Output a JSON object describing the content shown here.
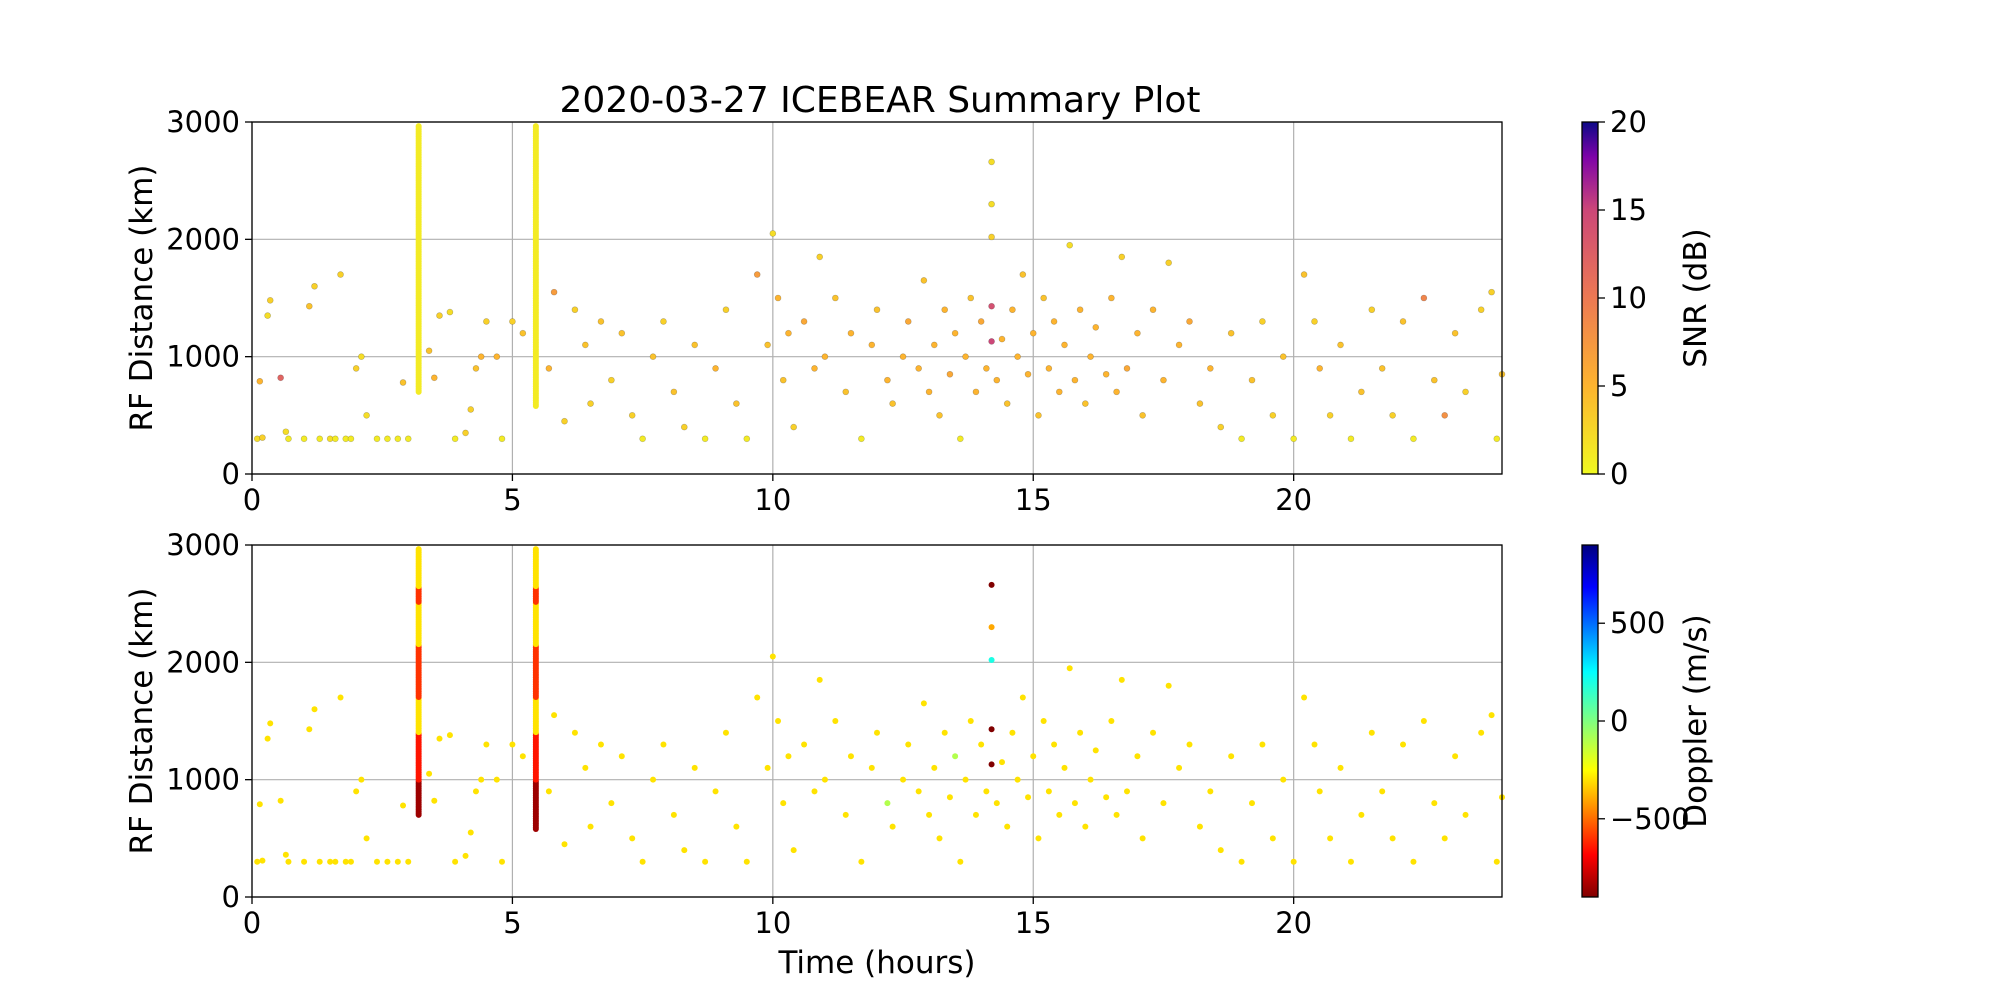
{
  "chart_data": {
    "title": "2020-03-27 ICEBEAR Summary Plot",
    "panels": [
      {
        "type": "scatter",
        "color_by": "snr",
        "ylabel": "RF Distance (km)",
        "xlabel": "",
        "xlim": [
          0,
          24
        ],
        "ylim": [
          0,
          3000
        ],
        "xticks": [
          "0",
          "5",
          "10",
          "15",
          "20"
        ],
        "yticks": [
          "0",
          "1000",
          "2000",
          "3000"
        ],
        "grid": true,
        "colorbar": {
          "label": "SNR (dB)",
          "ticks": [
            "0",
            "5",
            "10",
            "15",
            "20"
          ],
          "range": [
            0,
            20
          ],
          "colormap": "plasma_r"
        }
      },
      {
        "type": "scatter",
        "color_by": "doppler",
        "ylabel": "RF Distance (km)",
        "xlabel": "Time (hours)",
        "xlim": [
          0,
          24
        ],
        "ylim": [
          0,
          3000
        ],
        "xticks": [
          "0",
          "5",
          "10",
          "15",
          "20"
        ],
        "yticks": [
          "0",
          "1000",
          "2000",
          "3000"
        ],
        "grid": true,
        "colorbar": {
          "label": "Doppler (m/s)",
          "ticks": [
            "−500",
            "0",
            "500"
          ],
          "tick_values": [
            -500,
            0,
            500
          ],
          "range": [
            -900,
            900
          ],
          "colormap": "jet_r"
        }
      }
    ],
    "vertical_streaks": [
      {
        "time_h": 3.2,
        "range_km": [
          700,
          2970
        ],
        "snr_db": 1,
        "doppler_mps": -300
      },
      {
        "time_h": 5.45,
        "range_km": [
          580,
          2970
        ],
        "snr_db": 1,
        "doppler_mps": -300
      }
    ],
    "points": [
      [
        0.1,
        300,
        2,
        -300
      ],
      [
        0.2,
        310,
        3,
        -300
      ],
      [
        0.15,
        790,
        5,
        -300
      ],
      [
        0.35,
        1480,
        3,
        -300
      ],
      [
        0.3,
        1350,
        2,
        -300
      ],
      [
        0.55,
        820,
        12,
        -300
      ],
      [
        0.65,
        360,
        2,
        -300
      ],
      [
        0.7,
        300,
        1,
        -300
      ],
      [
        1.1,
        1430,
        4,
        -300
      ],
      [
        1.2,
        1600,
        3,
        -300
      ],
      [
        1.0,
        300,
        1,
        -300
      ],
      [
        1.3,
        300,
        1,
        -300
      ],
      [
        1.5,
        300,
        2,
        -300
      ],
      [
        1.6,
        300,
        1,
        -300
      ],
      [
        1.7,
        1700,
        3,
        -300
      ],
      [
        1.8,
        300,
        1,
        -300
      ],
      [
        1.9,
        300,
        1,
        -300
      ],
      [
        2.0,
        900,
        3,
        -300
      ],
      [
        2.1,
        1000,
        2,
        -300
      ],
      [
        2.2,
        500,
        2,
        -300
      ],
      [
        2.4,
        300,
        1,
        -300
      ],
      [
        2.6,
        300,
        1,
        -300
      ],
      [
        2.8,
        300,
        1,
        -300
      ],
      [
        2.9,
        780,
        4,
        -300
      ],
      [
        3.0,
        300,
        1,
        -300
      ],
      [
        3.4,
        1050,
        4,
        -300
      ],
      [
        3.6,
        1350,
        3,
        -300
      ],
      [
        3.8,
        1380,
        2,
        -300
      ],
      [
        3.5,
        820,
        5,
        -300
      ],
      [
        3.9,
        300,
        1,
        -300
      ],
      [
        4.1,
        350,
        3,
        -300
      ],
      [
        4.2,
        550,
        3,
        -300
      ],
      [
        4.3,
        900,
        4,
        -300
      ],
      [
        4.4,
        1000,
        5,
        -300
      ],
      [
        4.5,
        1300,
        3,
        -300
      ],
      [
        4.7,
        1000,
        5,
        -300
      ],
      [
        4.8,
        300,
        1,
        -300
      ],
      [
        5.0,
        1300,
        3,
        -300
      ],
      [
        5.2,
        1200,
        4,
        -300
      ],
      [
        5.7,
        900,
        5,
        -300
      ],
      [
        5.8,
        1550,
        7,
        -300
      ],
      [
        6.0,
        450,
        3,
        -300
      ],
      [
        6.2,
        1400,
        3,
        -300
      ],
      [
        6.4,
        1100,
        4,
        -300
      ],
      [
        6.5,
        600,
        3,
        -300
      ],
      [
        6.7,
        1300,
        4,
        -300
      ],
      [
        6.9,
        800,
        3,
        -300
      ],
      [
        7.1,
        1200,
        4,
        -300
      ],
      [
        7.3,
        500,
        3,
        -300
      ],
      [
        7.5,
        300,
        1,
        -300
      ],
      [
        7.7,
        1000,
        4,
        -300
      ],
      [
        7.9,
        1300,
        3,
        -300
      ],
      [
        8.1,
        700,
        4,
        -300
      ],
      [
        8.3,
        400,
        3,
        -300
      ],
      [
        8.5,
        1100,
        4,
        -300
      ],
      [
        8.7,
        300,
        1,
        -300
      ],
      [
        8.9,
        900,
        5,
        -300
      ],
      [
        9.1,
        1400,
        3,
        -300
      ],
      [
        9.3,
        600,
        4,
        -300
      ],
      [
        9.5,
        300,
        1,
        -300
      ],
      [
        9.7,
        1700,
        7,
        -300
      ],
      [
        9.9,
        1100,
        4,
        -300
      ],
      [
        10.0,
        2050,
        2,
        -300
      ],
      [
        10.1,
        1500,
        5,
        -300
      ],
      [
        10.2,
        800,
        4,
        -300
      ],
      [
        10.3,
        1200,
        5,
        -300
      ],
      [
        10.4,
        400,
        3,
        -300
      ],
      [
        10.6,
        1300,
        6,
        -300
      ],
      [
        10.8,
        900,
        5,
        -300
      ],
      [
        10.9,
        1850,
        3,
        -300
      ],
      [
        11.0,
        1000,
        5,
        -300
      ],
      [
        11.2,
        1500,
        4,
        -300
      ],
      [
        11.4,
        700,
        4,
        -300
      ],
      [
        11.5,
        1200,
        5,
        -300
      ],
      [
        11.7,
        300,
        1,
        -300
      ],
      [
        11.9,
        1100,
        5,
        -300
      ],
      [
        12.0,
        1400,
        4,
        -300
      ],
      [
        12.2,
        800,
        5,
        -100
      ],
      [
        12.3,
        600,
        4,
        -300
      ],
      [
        12.5,
        1000,
        5,
        -300
      ],
      [
        12.6,
        1300,
        6,
        -300
      ],
      [
        12.8,
        900,
        5,
        -300
      ],
      [
        12.9,
        1650,
        4,
        -300
      ],
      [
        13.0,
        700,
        5,
        -300
      ],
      [
        13.1,
        1100,
        5,
        -300
      ],
      [
        13.2,
        500,
        4,
        -300
      ],
      [
        13.3,
        1400,
        5,
        -300
      ],
      [
        13.4,
        850,
        6,
        -300
      ],
      [
        13.5,
        1200,
        5,
        -100
      ],
      [
        13.6,
        300,
        1,
        -300
      ],
      [
        13.7,
        1000,
        5,
        -300
      ],
      [
        13.8,
        1500,
        4,
        -300
      ],
      [
        13.9,
        700,
        5,
        -300
      ],
      [
        14.0,
        1300,
        6,
        -300
      ],
      [
        14.1,
        900,
        5,
        -300
      ],
      [
        14.2,
        2660,
        2,
        -900
      ],
      [
        14.2,
        2300,
        2,
        -400
      ],
      [
        14.2,
        2020,
        3,
        200
      ],
      [
        14.2,
        1430,
        14,
        -900
      ],
      [
        14.2,
        1130,
        15,
        -900
      ],
      [
        14.3,
        800,
        5,
        -300
      ],
      [
        14.4,
        1150,
        5,
        -300
      ],
      [
        14.5,
        600,
        4,
        -300
      ],
      [
        14.6,
        1400,
        5,
        -300
      ],
      [
        14.7,
        1000,
        5,
        -300
      ],
      [
        14.8,
        1700,
        4,
        -300
      ],
      [
        14.9,
        850,
        5,
        -300
      ],
      [
        15.0,
        1200,
        5,
        -300
      ],
      [
        15.1,
        500,
        4,
        -300
      ],
      [
        15.2,
        1500,
        4,
        -300
      ],
      [
        15.3,
        900,
        5,
        -300
      ],
      [
        15.4,
        1300,
        5,
        -300
      ],
      [
        15.5,
        700,
        5,
        -300
      ],
      [
        15.6,
        1100,
        5,
        -300
      ],
      [
        15.7,
        1950,
        2,
        -300
      ],
      [
        15.8,
        800,
        5,
        -300
      ],
      [
        15.9,
        1400,
        5,
        -300
      ],
      [
        16.0,
        600,
        4,
        -300
      ],
      [
        16.1,
        1000,
        5,
        -300
      ],
      [
        16.2,
        1250,
        5,
        -300
      ],
      [
        16.4,
        850,
        5,
        -300
      ],
      [
        16.5,
        1500,
        5,
        -300
      ],
      [
        16.6,
        700,
        5,
        -300
      ],
      [
        16.7,
        1850,
        3,
        -300
      ],
      [
        16.8,
        900,
        6,
        -300
      ],
      [
        17.0,
        1200,
        5,
        -300
      ],
      [
        17.1,
        500,
        4,
        -300
      ],
      [
        17.3,
        1400,
        5,
        -300
      ],
      [
        17.5,
        800,
        5,
        -300
      ],
      [
        17.6,
        1800,
        3,
        -300
      ],
      [
        17.8,
        1100,
        5,
        -300
      ],
      [
        18.0,
        1300,
        6,
        -300
      ],
      [
        18.2,
        600,
        4,
        -300
      ],
      [
        18.4,
        900,
        5,
        -300
      ],
      [
        18.6,
        400,
        3,
        -300
      ],
      [
        18.8,
        1200,
        4,
        -300
      ],
      [
        19.0,
        300,
        1,
        -300
      ],
      [
        19.2,
        800,
        4,
        -300
      ],
      [
        19.4,
        1300,
        3,
        -300
      ],
      [
        19.6,
        500,
        3,
        -300
      ],
      [
        19.8,
        1000,
        4,
        -300
      ],
      [
        20.0,
        300,
        1,
        -300
      ],
      [
        20.2,
        1700,
        4,
        -300
      ],
      [
        20.4,
        1300,
        3,
        -300
      ],
      [
        20.5,
        900,
        5,
        -300
      ],
      [
        20.7,
        500,
        3,
        -300
      ],
      [
        20.9,
        1100,
        4,
        -300
      ],
      [
        21.1,
        300,
        1,
        -300
      ],
      [
        21.3,
        700,
        4,
        -300
      ],
      [
        21.5,
        1400,
        3,
        -300
      ],
      [
        21.7,
        900,
        4,
        -300
      ],
      [
        21.9,
        500,
        3,
        -300
      ],
      [
        22.1,
        1300,
        4,
        -300
      ],
      [
        22.3,
        300,
        1,
        -300
      ],
      [
        22.5,
        1500,
        9,
        -300
      ],
      [
        22.7,
        800,
        4,
        -300
      ],
      [
        22.9,
        500,
        8,
        -300
      ],
      [
        23.1,
        1200,
        4,
        -300
      ],
      [
        23.3,
        700,
        3,
        -300
      ],
      [
        23.6,
        1400,
        3,
        -300
      ],
      [
        23.8,
        1550,
        3,
        -300
      ],
      [
        23.9,
        300,
        1,
        -300
      ],
      [
        24.0,
        850,
        4,
        -300
      ]
    ]
  }
}
